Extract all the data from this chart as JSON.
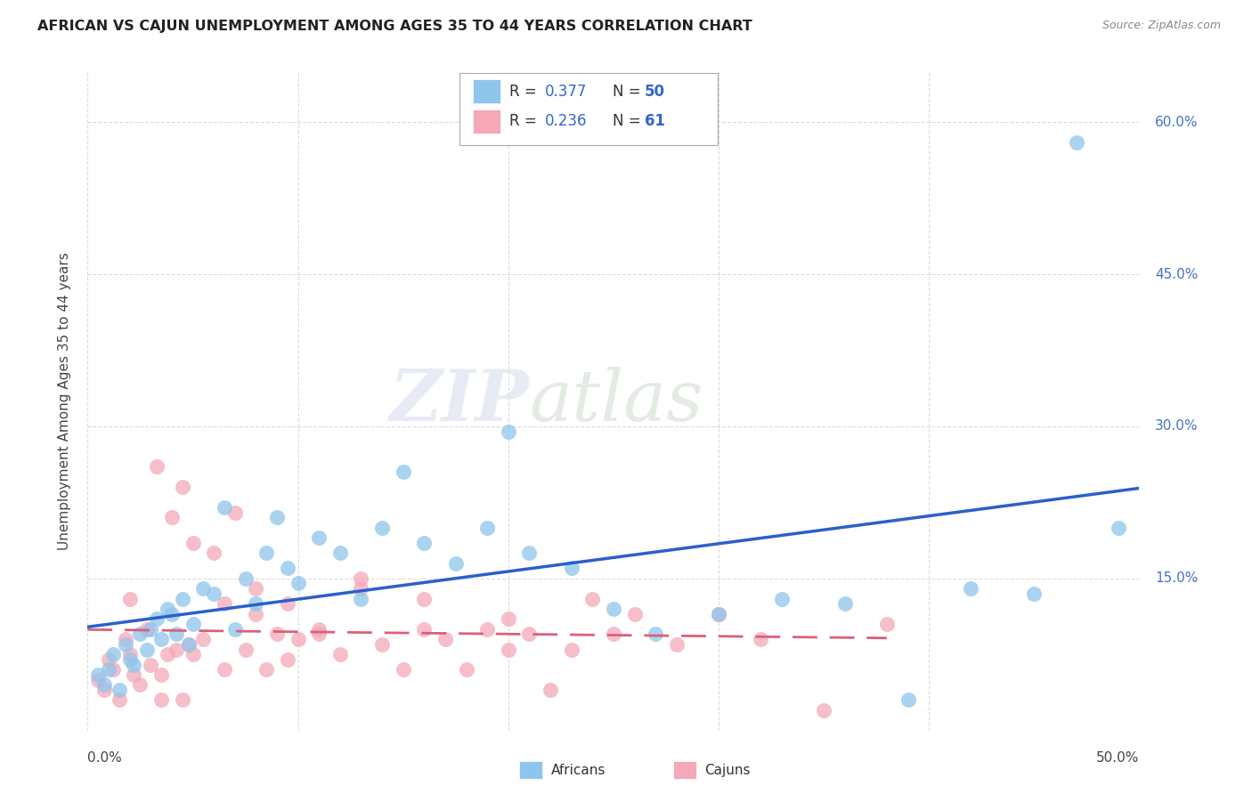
{
  "title": "AFRICAN VS CAJUN UNEMPLOYMENT AMONG AGES 35 TO 44 YEARS CORRELATION CHART",
  "source": "Source: ZipAtlas.com",
  "ylabel": "Unemployment Among Ages 35 to 44 years",
  "xlim": [
    0.0,
    0.5
  ],
  "ylim": [
    0.0,
    0.65
  ],
  "xticks": [
    0.0,
    0.1,
    0.2,
    0.3,
    0.4,
    0.5
  ],
  "yticks": [
    0.15,
    0.3,
    0.45,
    0.6
  ],
  "grid_color": "#cccccc",
  "background_color": "#ffffff",
  "african_color": "#8EC5EC",
  "cajun_color": "#F4A8B8",
  "african_line_color": "#2B5FCE",
  "cajun_line_color": "#D9607A",
  "african_R": 0.377,
  "african_N": 50,
  "cajun_R": 0.236,
  "cajun_N": 61,
  "watermark_zip": "ZIP",
  "watermark_atlas": "atlas",
  "africans_x": [
    0.005,
    0.008,
    0.01,
    0.012,
    0.015,
    0.018,
    0.02,
    0.022,
    0.025,
    0.028,
    0.03,
    0.033,
    0.035,
    0.038,
    0.04,
    0.042,
    0.045,
    0.048,
    0.05,
    0.055,
    0.06,
    0.065,
    0.07,
    0.075,
    0.08,
    0.085,
    0.09,
    0.095,
    0.1,
    0.11,
    0.12,
    0.13,
    0.14,
    0.15,
    0.16,
    0.175,
    0.19,
    0.2,
    0.21,
    0.23,
    0.25,
    0.27,
    0.3,
    0.33,
    0.36,
    0.39,
    0.42,
    0.45,
    0.47,
    0.49
  ],
  "africans_y": [
    0.055,
    0.045,
    0.06,
    0.075,
    0.04,
    0.085,
    0.07,
    0.065,
    0.095,
    0.08,
    0.1,
    0.11,
    0.09,
    0.12,
    0.115,
    0.095,
    0.13,
    0.085,
    0.105,
    0.14,
    0.135,
    0.22,
    0.1,
    0.15,
    0.125,
    0.175,
    0.21,
    0.16,
    0.145,
    0.19,
    0.175,
    0.13,
    0.2,
    0.255,
    0.185,
    0.165,
    0.2,
    0.295,
    0.175,
    0.16,
    0.12,
    0.095,
    0.115,
    0.13,
    0.125,
    0.03,
    0.14,
    0.135,
    0.58,
    0.2
  ],
  "cajuns_x": [
    0.005,
    0.008,
    0.01,
    0.012,
    0.015,
    0.018,
    0.02,
    0.022,
    0.025,
    0.028,
    0.03,
    0.033,
    0.035,
    0.038,
    0.04,
    0.042,
    0.045,
    0.048,
    0.05,
    0.055,
    0.06,
    0.065,
    0.07,
    0.075,
    0.08,
    0.085,
    0.09,
    0.095,
    0.1,
    0.11,
    0.12,
    0.13,
    0.14,
    0.15,
    0.16,
    0.17,
    0.18,
    0.19,
    0.2,
    0.21,
    0.22,
    0.23,
    0.24,
    0.25,
    0.26,
    0.28,
    0.3,
    0.32,
    0.35,
    0.38,
    0.02,
    0.035,
    0.05,
    0.065,
    0.08,
    0.095,
    0.11,
    0.13,
    0.045,
    0.16,
    0.2
  ],
  "cajuns_y": [
    0.05,
    0.04,
    0.07,
    0.06,
    0.03,
    0.09,
    0.075,
    0.055,
    0.045,
    0.1,
    0.065,
    0.26,
    0.055,
    0.075,
    0.21,
    0.08,
    0.24,
    0.085,
    0.075,
    0.09,
    0.175,
    0.06,
    0.215,
    0.08,
    0.115,
    0.06,
    0.095,
    0.07,
    0.09,
    0.1,
    0.075,
    0.15,
    0.085,
    0.06,
    0.13,
    0.09,
    0.06,
    0.1,
    0.11,
    0.095,
    0.04,
    0.08,
    0.13,
    0.095,
    0.115,
    0.085,
    0.115,
    0.09,
    0.02,
    0.105,
    0.13,
    0.03,
    0.185,
    0.125,
    0.14,
    0.125,
    0.095,
    0.14,
    0.03,
    0.1,
    0.08
  ]
}
